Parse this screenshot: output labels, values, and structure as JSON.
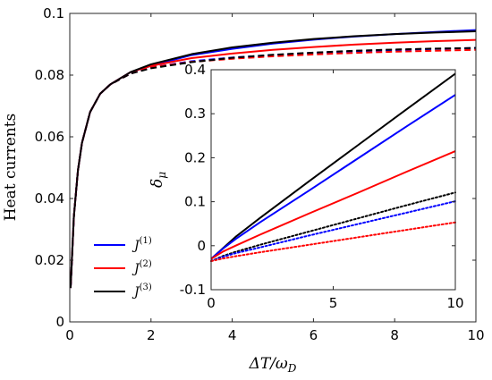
{
  "chart_data": [
    {
      "type": "line",
      "xlabel": "ΔT/ω",
      "xlabel_sub": "D",
      "ylabel": "Heat currents",
      "xlim": [
        0,
        10
      ],
      "ylim": [
        0,
        0.1
      ],
      "xticks": [
        0,
        2,
        4,
        6,
        8,
        10
      ],
      "xtick_labels": [
        "0",
        "2",
        "4",
        "6",
        "8",
        "10"
      ],
      "yticks": [
        0,
        0.02,
        0.04,
        0.06,
        0.08,
        0.1
      ],
      "ytick_labels": [
        "0",
        "0.02",
        "0.04",
        "0.06",
        "0.08",
        "0.1"
      ],
      "legend_position": "bottom-left",
      "series": [
        {
          "name": "J(1)",
          "legend_base": "J",
          "legend_sup": "(1)",
          "color": "#0000ff",
          "style": "solid",
          "x": [
            0.02,
            0.1,
            0.2,
            0.3,
            0.5,
            0.75,
            1.0,
            1.5,
            2.0,
            3.0,
            4.0,
            5.0,
            6.0,
            7.0,
            8.0,
            9.0,
            10.0
          ],
          "y": [
            0.011,
            0.034,
            0.049,
            0.058,
            0.068,
            0.074,
            0.077,
            0.081,
            0.083,
            0.0865,
            0.0885,
            0.0902,
            0.0915,
            0.0925,
            0.0933,
            0.094,
            0.0946
          ]
        },
        {
          "name": "J(2)",
          "legend_base": "J",
          "legend_sup": "(2)",
          "color": "#ff0000",
          "style": "solid",
          "x": [
            0.02,
            0.1,
            0.2,
            0.3,
            0.5,
            0.75,
            1.0,
            1.5,
            2.0,
            3.0,
            4.0,
            5.0,
            6.0,
            7.0,
            8.0,
            9.0,
            10.0
          ],
          "y": [
            0.011,
            0.034,
            0.049,
            0.058,
            0.068,
            0.074,
            0.077,
            0.081,
            0.083,
            0.0855,
            0.087,
            0.0882,
            0.0891,
            0.0899,
            0.0905,
            0.091,
            0.0914
          ]
        },
        {
          "name": "J(3)",
          "legend_base": "J",
          "legend_sup": "(3)",
          "color": "#000000",
          "style": "solid",
          "x": [
            0.02,
            0.1,
            0.2,
            0.3,
            0.5,
            0.75,
            1.0,
            1.5,
            2.0,
            3.0,
            4.0,
            5.0,
            6.0,
            7.0,
            8.0,
            9.0,
            10.0
          ],
          "y": [
            0.011,
            0.034,
            0.049,
            0.058,
            0.068,
            0.074,
            0.077,
            0.081,
            0.0835,
            0.0868,
            0.089,
            0.0905,
            0.0917,
            0.0926,
            0.0933,
            0.0938,
            0.0942
          ]
        },
        {
          "color": "#0000ff",
          "style": "dashed",
          "x": [
            0.02,
            0.1,
            0.2,
            0.3,
            0.5,
            0.75,
            1.0,
            1.5,
            2.0,
            3.0,
            4.0,
            5.0,
            6.0,
            7.0,
            8.0,
            9.0,
            10.0
          ],
          "y": [
            0.011,
            0.034,
            0.049,
            0.058,
            0.068,
            0.074,
            0.077,
            0.0805,
            0.0825,
            0.0845,
            0.0857,
            0.0865,
            0.0872,
            0.0877,
            0.0881,
            0.0885,
            0.0888
          ]
        },
        {
          "color": "#ff0000",
          "style": "dashed",
          "x": [
            0.02,
            0.1,
            0.2,
            0.3,
            0.5,
            0.75,
            1.0,
            1.5,
            2.0,
            3.0,
            4.0,
            5.0,
            6.0,
            7.0,
            8.0,
            9.0,
            10.0
          ],
          "y": [
            0.011,
            0.034,
            0.049,
            0.058,
            0.068,
            0.074,
            0.077,
            0.0805,
            0.0825,
            0.0843,
            0.0853,
            0.0861,
            0.0867,
            0.0872,
            0.0876,
            0.0879,
            0.0882
          ]
        },
        {
          "color": "#000000",
          "style": "dashed",
          "x": [
            0.02,
            0.1,
            0.2,
            0.3,
            0.5,
            0.75,
            1.0,
            1.5,
            2.0,
            3.0,
            4.0,
            5.0,
            6.0,
            7.0,
            8.0,
            9.0,
            10.0
          ],
          "y": [
            0.011,
            0.034,
            0.049,
            0.058,
            0.068,
            0.074,
            0.077,
            0.0805,
            0.0822,
            0.0842,
            0.0856,
            0.0866,
            0.0873,
            0.0879,
            0.0883,
            0.0886,
            0.0888
          ]
        }
      ]
    },
    {
      "type": "line",
      "placement": "inset",
      "ylabel": "δ",
      "ylabel_sub": "μ",
      "xlim": [
        0,
        10
      ],
      "ylim": [
        -0.1,
        0.4
      ],
      "xticks": [
        0,
        5,
        10
      ],
      "xtick_labels": [
        "0",
        "5",
        "10"
      ],
      "yticks": [
        -0.1,
        0,
        0.1,
        0.2,
        0.3,
        0.4
      ],
      "ytick_labels": [
        "-0.1",
        "0",
        "0.1",
        "0.2",
        "0.3",
        "0.4"
      ],
      "series": [
        {
          "color": "#000000",
          "style": "solid",
          "x": [
            0,
            0.5,
            1,
            2,
            4,
            6,
            8,
            10
          ],
          "y": [
            -0.03,
            -0.005,
            0.02,
            0.063,
            0.146,
            0.228,
            0.31,
            0.391
          ]
        },
        {
          "color": "#0000ff",
          "style": "solid",
          "x": [
            0,
            0.5,
            1,
            2,
            4,
            6,
            8,
            10
          ],
          "y": [
            -0.03,
            -0.006,
            0.015,
            0.053,
            0.125,
            0.198,
            0.271,
            0.343
          ]
        },
        {
          "color": "#ff0000",
          "style": "solid",
          "x": [
            0,
            0.5,
            1,
            2,
            4,
            6,
            8,
            10
          ],
          "y": [
            -0.03,
            -0.013,
            0.0,
            0.025,
            0.073,
            0.12,
            0.168,
            0.215
          ]
        },
        {
          "color": "#000000",
          "style": "dotted",
          "x": [
            0,
            0.5,
            1,
            2,
            4,
            6,
            8,
            10
          ],
          "y": [
            -0.035,
            -0.023,
            -0.014,
            0.002,
            0.032,
            0.062,
            0.092,
            0.121
          ]
        },
        {
          "color": "#0000ff",
          "style": "dotted",
          "x": [
            0,
            0.5,
            1,
            2,
            4,
            6,
            8,
            10
          ],
          "y": [
            -0.035,
            -0.025,
            -0.017,
            -0.004,
            0.023,
            0.049,
            0.075,
            0.101
          ]
        },
        {
          "color": "#ff0000",
          "style": "dotted",
          "x": [
            0,
            0.5,
            1,
            2,
            4,
            6,
            8,
            10
          ],
          "y": [
            -0.035,
            -0.029,
            -0.024,
            -0.015,
            0.002,
            0.019,
            0.036,
            0.053
          ]
        }
      ]
    }
  ]
}
